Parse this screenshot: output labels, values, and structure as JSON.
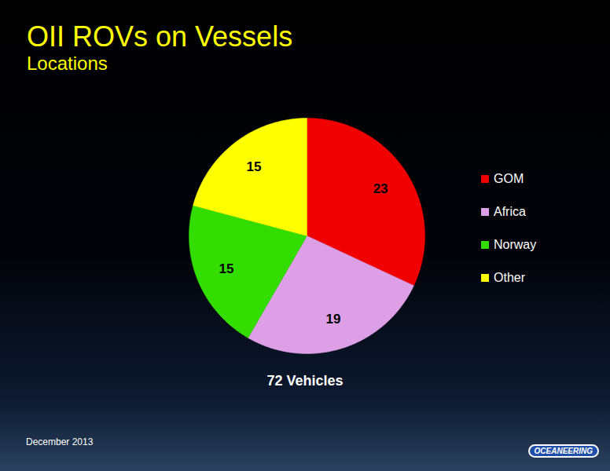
{
  "chart_data": {
    "type": "pie",
    "title": "OII ROVs on Vessels",
    "subtitle": "Locations",
    "categories": [
      "GOM",
      "Africa",
      "Norway",
      "Other"
    ],
    "values": [
      23,
      19,
      15,
      15
    ],
    "colors": [
      "#f00000",
      "#dda0e6",
      "#33dd00",
      "#ffff00"
    ],
    "data_labels": true,
    "legend": "right",
    "caption": "72 Vehicles"
  },
  "footer": {
    "date": "December 2013",
    "logo": "OCEANEERING"
  }
}
